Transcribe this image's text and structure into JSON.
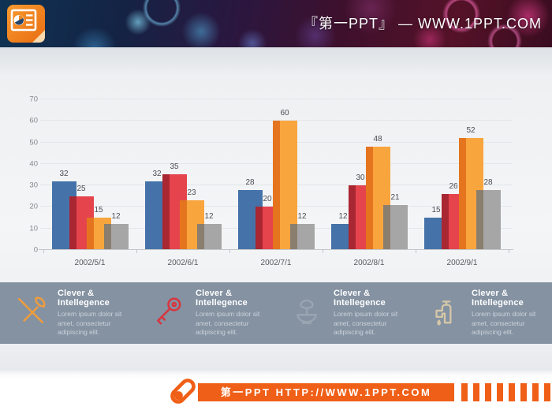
{
  "header": {
    "site_title": "『第一PPT』 — WWW.1PPT.COM"
  },
  "chart_data": {
    "type": "bar",
    "title": "",
    "xlabel": "",
    "ylabel": "",
    "categories": [
      "2002/5/1",
      "2002/6/1",
      "2002/7/1",
      "2002/8/1",
      "2002/9/1"
    ],
    "series": [
      {
        "name": "series-blue",
        "color": "#4573a9",
        "overlap_color": "",
        "values": [
          32,
          32,
          28,
          12,
          15
        ]
      },
      {
        "name": "series-red",
        "color": "#e6444d",
        "overlap_color": "#a82733",
        "values": [
          25,
          35,
          20,
          30,
          26
        ]
      },
      {
        "name": "series-orange",
        "color": "#f9a53e",
        "overlap_color": "#e5741f",
        "values": [
          15,
          23,
          60,
          48,
          52
        ]
      },
      {
        "name": "series-gray",
        "color": "#a6a6a6",
        "overlap_color": "#8a7e6e",
        "values": [
          12,
          12,
          12,
          21,
          28
        ]
      }
    ],
    "ylim": [
      0,
      70
    ],
    "yticks": [
      0,
      10,
      20,
      30,
      40,
      50,
      60,
      70
    ],
    "grid": true,
    "legend_position": "none",
    "data_labels": true
  },
  "features": [
    {
      "icon": "tools-icon",
      "icon_color": "#ef9c3d",
      "title": "Clever & Intellegence",
      "body": "Lorem ipsum dolor sit amet, consectetur adipiscing elit."
    },
    {
      "icon": "key-icon",
      "icon_color": "#d8363f",
      "title": "Clever & Intellegence",
      "body": "Lorem ipsum dolor sit amet, consectetur adipiscing elit."
    },
    {
      "icon": "fountain-icon",
      "icon_color": "#9aa5b2",
      "title": "Clever & Intellegence",
      "body": "Lorem ipsum dolor sit amet, consectetur adipiscing elit."
    },
    {
      "icon": "faucet-icon",
      "icon_color": "#d5c7a6",
      "title": "Clever & Intellegence",
      "body": "Lorem ipsum dolor sit amet, consectetur adipiscing elit."
    }
  ],
  "footer": {
    "banner_text": "第一PPT HTTP://WWW.1PPT.COM",
    "accent_color": "#f05f17"
  }
}
